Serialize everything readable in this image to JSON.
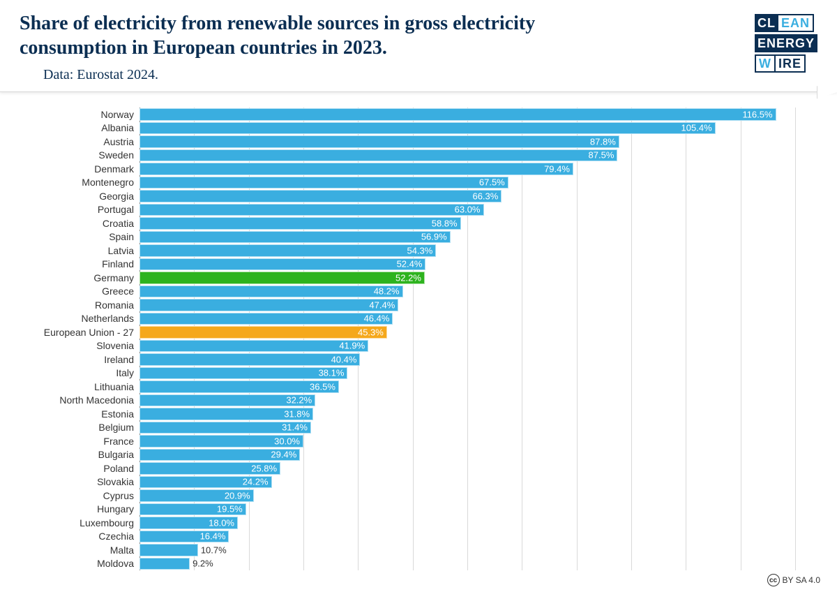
{
  "header": {
    "title": "Share of electricity from renewable sources in gross electricity consumption in European countries in 2023.",
    "subtitle": "Data: Eurostat 2024."
  },
  "logo": {
    "row1_a": "CL",
    "row1_b": "EAN",
    "row2": "ENERGY",
    "row3_a": "W",
    "row3_b": "IRE"
  },
  "chart": {
    "type": "horizontal-bar",
    "x_max": 120,
    "grid_step": 10,
    "bar_color_default": "#3aaee0",
    "bar_color_highlight_green": "#2db31e",
    "bar_color_highlight_orange": "#f5a81c",
    "background_color": "#ffffff",
    "grid_color": "#d9d9d9",
    "axis_color": "#888888",
    "label_color": "#333333",
    "label_fontsize": 14,
    "value_fontsize": 13,
    "value_color_inside": "#ffffff",
    "value_color_outside": "#333333",
    "row_height": 19.5,
    "items": [
      {
        "label": "Norway",
        "value": 116.5,
        "color": "#3aaee0"
      },
      {
        "label": "Albania",
        "value": 105.4,
        "color": "#3aaee0"
      },
      {
        "label": "Austria",
        "value": 87.8,
        "color": "#3aaee0"
      },
      {
        "label": "Sweden",
        "value": 87.5,
        "color": "#3aaee0"
      },
      {
        "label": "Denmark",
        "value": 79.4,
        "color": "#3aaee0"
      },
      {
        "label": "Montenegro",
        "value": 67.5,
        "color": "#3aaee0"
      },
      {
        "label": "Georgia",
        "value": 66.3,
        "color": "#3aaee0"
      },
      {
        "label": "Portugal",
        "value": 63.0,
        "color": "#3aaee0"
      },
      {
        "label": "Croatia",
        "value": 58.8,
        "color": "#3aaee0"
      },
      {
        "label": "Spain",
        "value": 56.9,
        "color": "#3aaee0"
      },
      {
        "label": "Latvia",
        "value": 54.3,
        "color": "#3aaee0"
      },
      {
        "label": "Finland",
        "value": 52.4,
        "color": "#3aaee0"
      },
      {
        "label": "Germany",
        "value": 52.2,
        "color": "#2db31e"
      },
      {
        "label": "Greece",
        "value": 48.2,
        "color": "#3aaee0"
      },
      {
        "label": "Romania",
        "value": 47.4,
        "color": "#3aaee0"
      },
      {
        "label": "Netherlands",
        "value": 46.4,
        "color": "#3aaee0"
      },
      {
        "label": "European Union - 27",
        "value": 45.3,
        "color": "#f5a81c"
      },
      {
        "label": "Slovenia",
        "value": 41.9,
        "color": "#3aaee0"
      },
      {
        "label": "Ireland",
        "value": 40.4,
        "color": "#3aaee0"
      },
      {
        "label": "Italy",
        "value": 38.1,
        "color": "#3aaee0"
      },
      {
        "label": "Lithuania",
        "value": 36.5,
        "color": "#3aaee0"
      },
      {
        "label": "North Macedonia",
        "value": 32.2,
        "color": "#3aaee0"
      },
      {
        "label": "Estonia",
        "value": 31.8,
        "color": "#3aaee0"
      },
      {
        "label": "Belgium",
        "value": 31.4,
        "color": "#3aaee0"
      },
      {
        "label": "France",
        "value": 30.0,
        "color": "#3aaee0"
      },
      {
        "label": "Bulgaria",
        "value": 29.4,
        "color": "#3aaee0"
      },
      {
        "label": "Poland",
        "value": 25.8,
        "color": "#3aaee0"
      },
      {
        "label": "Slovakia",
        "value": 24.2,
        "color": "#3aaee0"
      },
      {
        "label": "Cyprus",
        "value": 20.9,
        "color": "#3aaee0"
      },
      {
        "label": "Hungary",
        "value": 19.5,
        "color": "#3aaee0"
      },
      {
        "label": "Luxembourg",
        "value": 18.0,
        "color": "#3aaee0"
      },
      {
        "label": "Czechia",
        "value": 16.4,
        "color": "#3aaee0"
      },
      {
        "label": "Malta",
        "value": 10.7,
        "color": "#3aaee0"
      },
      {
        "label": "Moldova",
        "value": 9.2,
        "color": "#3aaee0"
      }
    ]
  },
  "license": {
    "text": "BY SA 4.0",
    "badge": "cc"
  }
}
